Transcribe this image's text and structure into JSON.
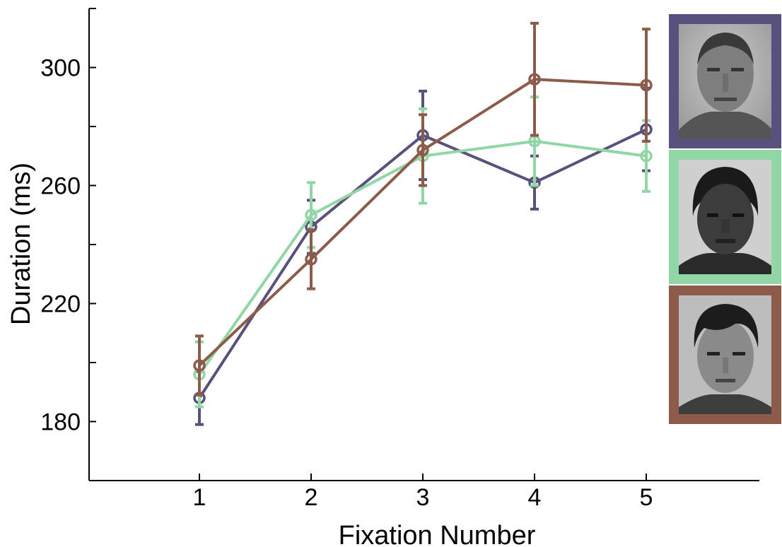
{
  "chart_data": {
    "type": "line",
    "xlabel": "Fixation Number",
    "ylabel": "Duration (ms)",
    "x": [
      1,
      2,
      3,
      4,
      5
    ],
    "xlim": [
      0,
      6
    ],
    "ylim": [
      160,
      320
    ],
    "xticks": [
      1,
      2,
      3,
      4,
      5
    ],
    "yticks": [
      180,
      220,
      260,
      300
    ],
    "yticks_minor": [
      200,
      240,
      280,
      320
    ],
    "grid": false,
    "legend": "face images at right (color-coded frames)",
    "series": [
      {
        "color": "#58517d",
        "face": "white-male-face",
        "values": [
          188,
          246,
          277,
          261,
          279
        ],
        "err": [
          9,
          9,
          15,
          9,
          14
        ]
      },
      {
        "color": "#91d6a5",
        "face": "black-female-face",
        "values": [
          196,
          250,
          270,
          275,
          270
        ],
        "err": [
          11,
          11,
          16,
          15,
          12
        ]
      },
      {
        "color": "#8d5b4a",
        "face": "asian-male-face",
        "values": [
          199,
          235,
          272,
          296,
          294
        ],
        "err": [
          10,
          10,
          12,
          19,
          19
        ]
      }
    ]
  },
  "faces": [
    {
      "name": "white-male-face",
      "frame_color": "#58517d"
    },
    {
      "name": "black-female-face",
      "frame_color": "#91d6a5"
    },
    {
      "name": "asian-male-face",
      "frame_color": "#8d5b4a"
    }
  ]
}
